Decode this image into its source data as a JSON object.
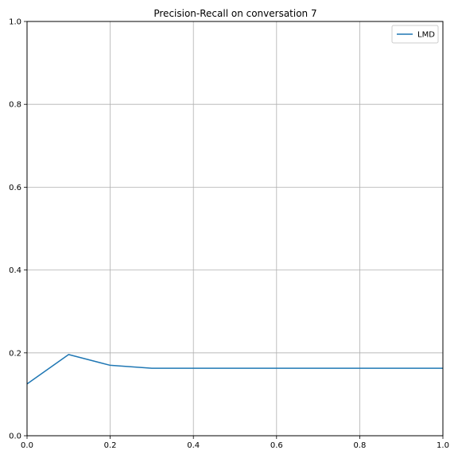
{
  "chart_data": {
    "type": "line",
    "title": "Precision-Recall on conversation 7",
    "xlabel": "",
    "ylabel": "",
    "xlim": [
      0.0,
      1.0
    ],
    "ylim": [
      0.0,
      1.0
    ],
    "xticks": [
      "0.0",
      "0.2",
      "0.4",
      "0.6",
      "0.8",
      "1.0"
    ],
    "yticks": [
      "0.0",
      "0.2",
      "0.4",
      "0.6",
      "0.8",
      "1.0"
    ],
    "grid": true,
    "legend_position": "top-right",
    "series": [
      {
        "name": "LMD",
        "color": "#1f77b4",
        "x": [
          0.0,
          0.1,
          0.2,
          0.3,
          0.4,
          0.5,
          0.6,
          0.7,
          0.8,
          0.9,
          1.0
        ],
        "y": [
          0.125,
          0.196,
          0.17,
          0.163,
          0.163,
          0.163,
          0.163,
          0.163,
          0.163,
          0.163,
          0.163
        ]
      }
    ]
  }
}
